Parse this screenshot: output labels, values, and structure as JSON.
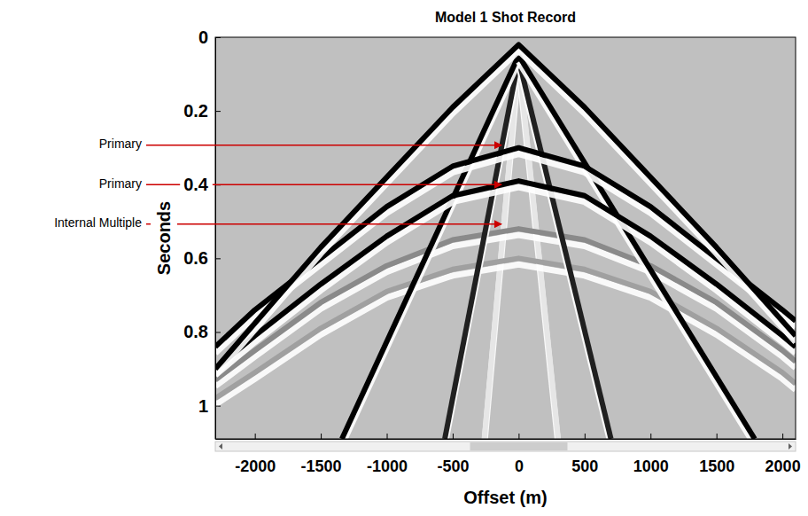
{
  "chart_data": {
    "type": "line",
    "title": "Model 1 Shot Record",
    "x_label": "Offset (m)",
    "y_label": "Seconds",
    "xlim": [
      -2300,
      2100
    ],
    "ylim": [
      1.09,
      0
    ],
    "xticks": [
      -2000,
      -1500,
      -1000,
      -500,
      0,
      500,
      1000,
      1500,
      2000
    ],
    "yticks": [
      0,
      0.2,
      0.4,
      0.6,
      0.8,
      1
    ],
    "series": [
      {
        "color": "#e6e6e6",
        "x": [
          0,
          -260
        ],
        "values": [
          0.06,
          1.09
        ]
      },
      {
        "color": "#e6e6e6",
        "x": [
          0,
          300
        ],
        "values": [
          0.06,
          1.09
        ]
      },
      {
        "color": "#a0a0a0",
        "x": [
          -2300,
          -2000,
          -1500,
          -1000,
          -500,
          0,
          500,
          1000,
          1500,
          2000,
          2100
        ],
        "values": [
          0.98,
          0.91,
          0.79,
          0.69,
          0.63,
          0.6,
          0.63,
          0.69,
          0.79,
          0.91,
          0.94
        ]
      },
      {
        "color": "#8a8a8a",
        "x": [
          -2300,
          -2000,
          -1500,
          -1000,
          -500,
          0,
          500,
          1000,
          1500,
          2000,
          2100
        ],
        "values": [
          0.93,
          0.85,
          0.72,
          0.62,
          0.55,
          0.52,
          0.55,
          0.62,
          0.72,
          0.85,
          0.88
        ]
      },
      {
        "color": "#202020",
        "x": [
          0,
          -560
        ],
        "values": [
          0.06,
          1.09
        ]
      },
      {
        "color": "#202020",
        "x": [
          0,
          700
        ],
        "values": [
          0.06,
          1.09
        ]
      },
      {
        "color": "#000000",
        "x": [
          0,
          -1340
        ],
        "values": [
          0.05,
          1.09
        ]
      },
      {
        "color": "#000000",
        "x": [
          0,
          1790
        ],
        "values": [
          0.05,
          1.09
        ]
      },
      {
        "color": "#000000",
        "x": [
          -2300,
          -2000,
          -1500,
          -1000,
          -500,
          0,
          500,
          1000,
          1500,
          2000,
          2100
        ],
        "values": [
          0.9,
          0.81,
          0.67,
          0.54,
          0.43,
          0.39,
          0.43,
          0.54,
          0.67,
          0.81,
          0.84
        ]
      },
      {
        "color": "#000000",
        "x": [
          -2300,
          -2000,
          -1500,
          -1000,
          -500,
          0,
          500,
          1000,
          1500,
          2000,
          2100
        ],
        "values": [
          0.84,
          0.74,
          0.6,
          0.46,
          0.35,
          0.3,
          0.35,
          0.46,
          0.6,
          0.74,
          0.77
        ]
      },
      {
        "color": "#000000",
        "x": [
          -2300,
          -1500,
          -1000,
          -500,
          0,
          500,
          1000,
          1500,
          2100
        ],
        "values": [
          0.9,
          0.57,
          0.38,
          0.19,
          0.02,
          0.19,
          0.38,
          0.57,
          0.81
        ]
      }
    ],
    "annotations": [
      {
        "text": "Primary",
        "x": -130,
        "y": 0.293
      },
      {
        "text": "Primary",
        "x": -130,
        "y": 0.4
      },
      {
        "text": "Internal Multiple",
        "x": -130,
        "y": 0.507
      }
    ]
  }
}
